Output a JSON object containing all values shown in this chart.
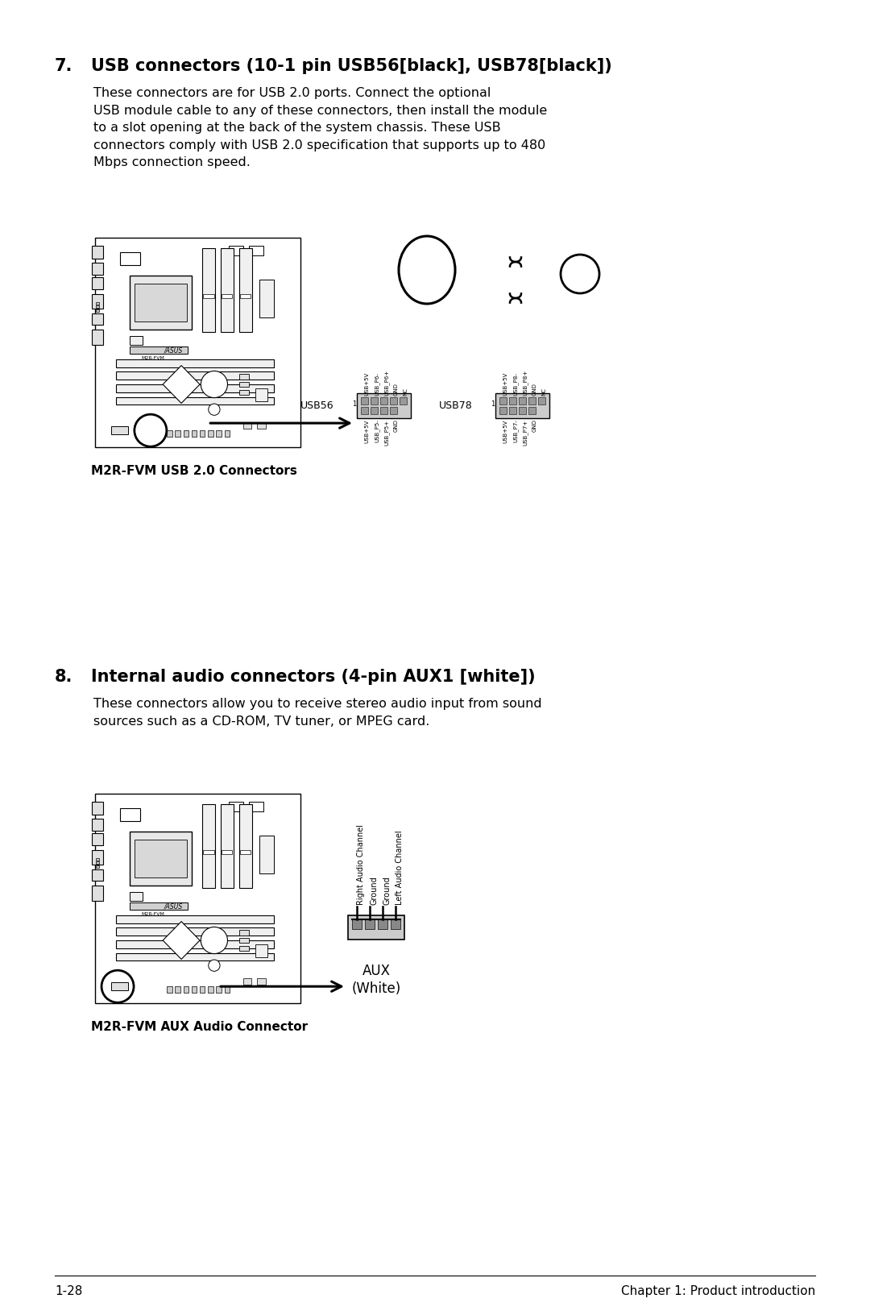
{
  "bg_color": "#ffffff",
  "text_color": "#000000",
  "section7_number": "7.",
  "section7_title": "USB connectors (10-1 pin USB56[black], USB78[black])",
  "section7_body": "These connectors are for USB 2.0 ports. Connect the optional\nUSB module cable to any of these connectors, then install the module\nto a slot opening at the back of the system chassis. These USB\nconnectors comply with USB 2.0 specification that supports up to 480\nMbps connection speed.",
  "section7_caption": "M2R-FVM USB 2.0 Connectors",
  "section8_number": "8.",
  "section8_title": "Internal audio connectors (4-pin AUX1 [white])",
  "section8_body": "These connectors allow you to receive stereo audio input from sound\nsources such as a CD-ROM, TV tuner, or MPEG card.",
  "section8_caption": "M2R-FVM AUX Audio Connector",
  "footer_left": "1-28",
  "footer_right": "Chapter 1: Product introduction",
  "usb56_top_labels": [
    "USB+5V",
    "USB_P6-",
    "USB_P6+",
    "GND",
    "NC"
  ],
  "usb56_bot_labels": [
    "USB+5V",
    "USB_P5-",
    "USB_P5+",
    "GND"
  ],
  "usb78_top_labels": [
    "USB+5V",
    "USB_P8-",
    "USB_P8+",
    "GND",
    "NC"
  ],
  "usb78_bot_labels": [
    "USB+5V",
    "USB_P7-",
    "USB_P7+",
    "GND"
  ],
  "aux_labels": [
    "Right Audio Channel",
    "Ground",
    "Ground",
    "Left Audio Channel"
  ]
}
